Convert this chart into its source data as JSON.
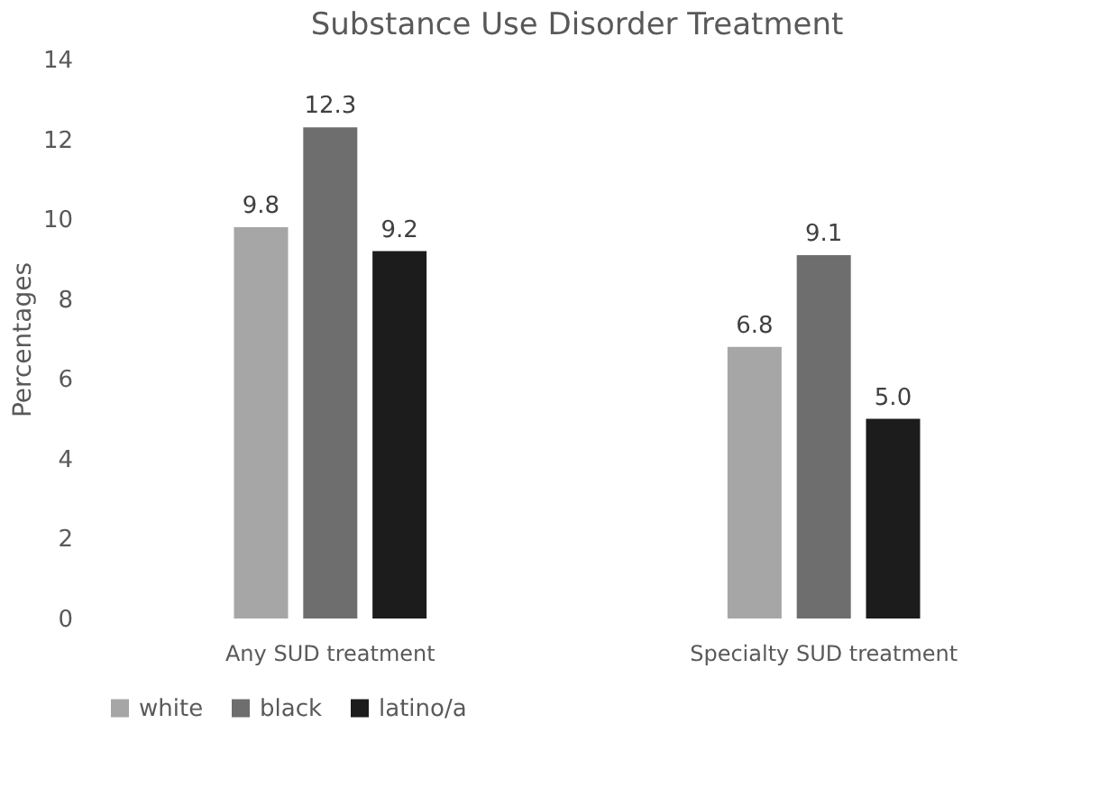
{
  "chart_data": {
    "type": "bar",
    "title": "Substance Use Disorder Treatment",
    "ylabel": "Percentages",
    "categories": [
      "Any SUD treatment",
      "Specialty SUD treatment"
    ],
    "series": [
      {
        "name": "white",
        "color": "#a6a6a6",
        "values": [
          9.8,
          6.8
        ],
        "value_labels": [
          "9.8",
          "6.8"
        ]
      },
      {
        "name": "black",
        "color": "#6e6e6e",
        "values": [
          12.3,
          9.1
        ],
        "value_labels": [
          "12.3",
          "9.1"
        ]
      },
      {
        "name": "latino/a",
        "color": "#1c1c1c",
        "values": [
          9.2,
          5.0
        ],
        "value_labels": [
          "9.2",
          "5.0"
        ]
      }
    ],
    "ylim": [
      0,
      14
    ],
    "yticks": [
      0,
      2,
      4,
      6,
      8,
      10,
      12,
      14
    ],
    "grid": false,
    "legend": "bottom"
  }
}
